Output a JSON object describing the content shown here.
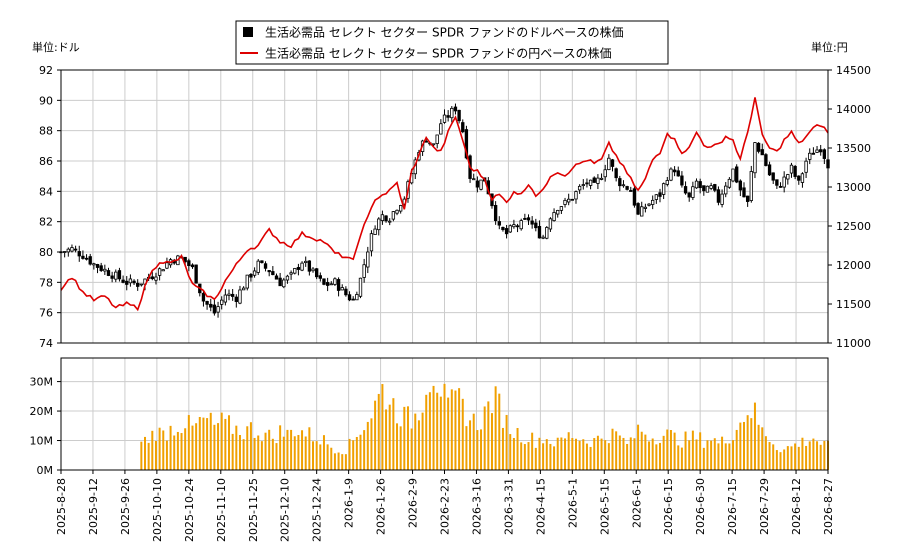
{
  "chart_data": {
    "type": "candlestick+line+bar",
    "legend": {
      "placement": "top-center",
      "items": [
        {
          "name": "生活必需品 セレクト セクター SPDR ファンドのドルベースの株価",
          "color": "#000000",
          "marker": "square"
        },
        {
          "name": "生活必需品 セレクト セクター SPDR ファンドの円ベースの株価",
          "color": "#dd0000",
          "marker": "line"
        }
      ]
    },
    "units": {
      "left": "単位:ドル",
      "right": "単位:円"
    },
    "price_axis_left": {
      "range": [
        74,
        92
      ],
      "ticks": [
        "74",
        "76",
        "78",
        "80",
        "82",
        "84",
        "86",
        "88",
        "90",
        "92"
      ]
    },
    "price_axis_right": {
      "range": [
        11000,
        14500
      ],
      "ticks": [
        "11000",
        "11500",
        "12000",
        "12500",
        "13000",
        "13500",
        "14000",
        "14500"
      ]
    },
    "volume_axis": {
      "range": [
        0,
        38000000
      ],
      "ticks": [
        "0M",
        "10M",
        "20M",
        "30M"
      ]
    },
    "x_ticks": [
      "2025-8-28",
      "2025-9-12",
      "2025-9-26",
      "2025-10-10",
      "2025-10-24",
      "2025-11-10",
      "2025-11-25",
      "2025-12-10",
      "2025-12-24",
      "2026-1-9",
      "2026-1-26",
      "2026-2-9",
      "2026-2-23",
      "2026-3-16",
      "2026-3-31",
      "2026-4-15",
      "2026-5-1",
      "2026-5-15",
      "2026-6-1",
      "2026-6-15",
      "2026-6-30",
      "2026-7-15",
      "2026-7-29",
      "2026-8-12",
      "2026-8-27"
    ],
    "grid": true,
    "usd_close_anchors": [
      [
        0,
        80.0
      ],
      [
        3,
        80.2
      ],
      [
        6,
        79.8
      ],
      [
        9,
        79.2
      ],
      [
        12,
        78.8
      ],
      [
        15,
        78.4
      ],
      [
        18,
        78.0
      ],
      [
        21,
        77.9
      ],
      [
        24,
        78.3
      ],
      [
        27,
        78.8
      ],
      [
        30,
        79.5
      ],
      [
        33,
        79.6
      ],
      [
        36,
        78.9
      ],
      [
        39,
        76.8
      ],
      [
        42,
        76.0
      ],
      [
        45,
        77.2
      ],
      [
        48,
        77.0
      ],
      [
        51,
        78.2
      ],
      [
        54,
        79.2
      ],
      [
        57,
        78.8
      ],
      [
        60,
        78.0
      ],
      [
        63,
        78.4
      ],
      [
        66,
        79.4
      ],
      [
        69,
        78.6
      ],
      [
        72,
        77.8
      ],
      [
        75,
        78.0
      ],
      [
        78,
        77.2
      ],
      [
        80,
        76.8
      ],
      [
        82,
        78.2
      ],
      [
        84,
        80.2
      ],
      [
        86,
        81.8
      ],
      [
        88,
        82.4
      ],
      [
        90,
        82.3
      ],
      [
        92,
        83.0
      ],
      [
        94,
        83.6
      ],
      [
        96,
        85.2
      ],
      [
        98,
        86.8
      ],
      [
        100,
        87.5
      ],
      [
        102,
        87.0
      ],
      [
        104,
        88.5
      ],
      [
        106,
        89.0
      ],
      [
        108,
        89.5
      ],
      [
        110,
        88.0
      ],
      [
        112,
        85.0
      ],
      [
        114,
        84.5
      ],
      [
        116,
        84.8
      ],
      [
        118,
        83.2
      ],
      [
        120,
        81.5
      ],
      [
        122,
        81.2
      ],
      [
        124,
        81.7
      ],
      [
        126,
        81.8
      ],
      [
        128,
        82.2
      ],
      [
        130,
        81.4
      ],
      [
        132,
        81.0
      ],
      [
        134,
        82.4
      ],
      [
        136,
        83.0
      ],
      [
        138,
        83.2
      ],
      [
        140,
        83.6
      ],
      [
        142,
        84.2
      ],
      [
        144,
        84.6
      ],
      [
        146,
        84.3
      ],
      [
        148,
        85.1
      ],
      [
        150,
        86.2
      ],
      [
        152,
        84.8
      ],
      [
        154,
        84.4
      ],
      [
        156,
        84.1
      ],
      [
        158,
        82.4
      ],
      [
        160,
        83.0
      ],
      [
        162,
        83.4
      ],
      [
        164,
        83.8
      ],
      [
        166,
        85.0
      ],
      [
        168,
        85.5
      ],
      [
        170,
        84.2
      ],
      [
        172,
        83.5
      ],
      [
        174,
        84.6
      ],
      [
        176,
        83.9
      ],
      [
        178,
        84.2
      ],
      [
        180,
        83.4
      ],
      [
        182,
        84.5
      ],
      [
        184,
        85.4
      ],
      [
        186,
        84.1
      ],
      [
        188,
        83.2
      ],
      [
        190,
        87.2
      ],
      [
        192,
        86.4
      ],
      [
        194,
        85.1
      ],
      [
        196,
        84.2
      ],
      [
        198,
        84.8
      ],
      [
        200,
        85.5
      ],
      [
        202,
        84.5
      ],
      [
        204,
        86.0
      ],
      [
        206,
        86.6
      ],
      [
        208,
        86.9
      ],
      [
        210,
        85.8
      ]
    ],
    "jpy_close_anchors": [
      [
        0,
        11700
      ],
      [
        3,
        11850
      ],
      [
        6,
        11650
      ],
      [
        9,
        11550
      ],
      [
        12,
        11600
      ],
      [
        15,
        11450
      ],
      [
        18,
        11500
      ],
      [
        21,
        11450
      ],
      [
        24,
        11850
      ],
      [
        27,
        12050
      ],
      [
        30,
        12020
      ],
      [
        33,
        12100
      ],
      [
        36,
        11750
      ],
      [
        39,
        11650
      ],
      [
        42,
        11550
      ],
      [
        45,
        11800
      ],
      [
        48,
        12000
      ],
      [
        51,
        12200
      ],
      [
        54,
        12250
      ],
      [
        57,
        12450
      ],
      [
        60,
        12300
      ],
      [
        63,
        12250
      ],
      [
        66,
        12400
      ],
      [
        69,
        12350
      ],
      [
        72,
        12300
      ],
      [
        75,
        12150
      ],
      [
        78,
        12100
      ],
      [
        80,
        12050
      ],
      [
        82,
        12400
      ],
      [
        84,
        12600
      ],
      [
        86,
        12850
      ],
      [
        88,
        12900
      ],
      [
        90,
        12950
      ],
      [
        92,
        13050
      ],
      [
        94,
        12700
      ],
      [
        96,
        13200
      ],
      [
        98,
        13400
      ],
      [
        100,
        13650
      ],
      [
        102,
        13500
      ],
      [
        104,
        13450
      ],
      [
        106,
        13700
      ],
      [
        108,
        13900
      ],
      [
        110,
        13600
      ],
      [
        112,
        13250
      ],
      [
        114,
        13200
      ],
      [
        116,
        13100
      ],
      [
        118,
        12850
      ],
      [
        120,
        12900
      ],
      [
        122,
        12800
      ],
      [
        124,
        12950
      ],
      [
        126,
        12900
      ],
      [
        128,
        13050
      ],
      [
        130,
        12900
      ],
      [
        132,
        12950
      ],
      [
        134,
        13150
      ],
      [
        136,
        13200
      ],
      [
        138,
        13150
      ],
      [
        140,
        13250
      ],
      [
        142,
        13300
      ],
      [
        144,
        13350
      ],
      [
        146,
        13300
      ],
      [
        148,
        13350
      ],
      [
        150,
        13550
      ],
      [
        152,
        13400
      ],
      [
        154,
        13250
      ],
      [
        156,
        13100
      ],
      [
        158,
        12950
      ],
      [
        160,
        13100
      ],
      [
        162,
        13350
      ],
      [
        164,
        13450
      ],
      [
        166,
        13700
      ],
      [
        168,
        13600
      ],
      [
        170,
        13450
      ],
      [
        172,
        13500
      ],
      [
        174,
        13700
      ],
      [
        176,
        13550
      ],
      [
        178,
        13500
      ],
      [
        180,
        13550
      ],
      [
        182,
        13650
      ],
      [
        184,
        13600
      ],
      [
        186,
        13350
      ],
      [
        188,
        13700
      ],
      [
        190,
        14150
      ],
      [
        192,
        13650
      ],
      [
        194,
        13500
      ],
      [
        196,
        13450
      ],
      [
        198,
        13600
      ],
      [
        200,
        13700
      ],
      [
        202,
        13550
      ],
      [
        204,
        13650
      ],
      [
        206,
        13750
      ],
      [
        208,
        13800
      ],
      [
        210,
        13700
      ]
    ],
    "volume_anchors_millions": [
      [
        0,
        0
      ],
      [
        21,
        0
      ],
      [
        22,
        9
      ],
      [
        24,
        11
      ],
      [
        26,
        13
      ],
      [
        28,
        12
      ],
      [
        30,
        14
      ],
      [
        32,
        15
      ],
      [
        34,
        16
      ],
      [
        36,
        14
      ],
      [
        38,
        16
      ],
      [
        40,
        17
      ],
      [
        42,
        15
      ],
      [
        44,
        16
      ],
      [
        46,
        15
      ],
      [
        48,
        14
      ],
      [
        50,
        13
      ],
      [
        52,
        14
      ],
      [
        54,
        13
      ],
      [
        56,
        12
      ],
      [
        58,
        11
      ],
      [
        60,
        13
      ],
      [
        62,
        12
      ],
      [
        64,
        14
      ],
      [
        66,
        13
      ],
      [
        68,
        12
      ],
      [
        70,
        11
      ],
      [
        72,
        10
      ],
      [
        74,
        8
      ],
      [
        76,
        7
      ],
      [
        78,
        7
      ],
      [
        80,
        10
      ],
      [
        82,
        14
      ],
      [
        84,
        17
      ],
      [
        86,
        22
      ],
      [
        88,
        27
      ],
      [
        90,
        24
      ],
      [
        92,
        20
      ],
      [
        94,
        18
      ],
      [
        96,
        17
      ],
      [
        98,
        20
      ],
      [
        100,
        30
      ],
      [
        102,
        34
      ],
      [
        104,
        28
      ],
      [
        106,
        20
      ],
      [
        108,
        24
      ],
      [
        110,
        22
      ],
      [
        112,
        17
      ],
      [
        114,
        16
      ],
      [
        116,
        19
      ],
      [
        118,
        24
      ],
      [
        120,
        22
      ],
      [
        122,
        16
      ],
      [
        124,
        13
      ],
      [
        126,
        12
      ],
      [
        128,
        11
      ],
      [
        130,
        10
      ],
      [
        132,
        11
      ],
      [
        134,
        10
      ],
      [
        136,
        9
      ],
      [
        138,
        11
      ],
      [
        140,
        12
      ],
      [
        142,
        11
      ],
      [
        144,
        10
      ],
      [
        146,
        10
      ],
      [
        148,
        11
      ],
      [
        150,
        12
      ],
      [
        152,
        12
      ],
      [
        154,
        10
      ],
      [
        156,
        9
      ],
      [
        158,
        14
      ],
      [
        160,
        13
      ],
      [
        162,
        11
      ],
      [
        164,
        12
      ],
      [
        166,
        12
      ],
      [
        168,
        11
      ],
      [
        170,
        10
      ],
      [
        172,
        11
      ],
      [
        174,
        11
      ],
      [
        176,
        10
      ],
      [
        178,
        11
      ],
      [
        180,
        9
      ],
      [
        182,
        10
      ],
      [
        184,
        13
      ],
      [
        186,
        16
      ],
      [
        188,
        21
      ],
      [
        190,
        19
      ],
      [
        192,
        13
      ],
      [
        194,
        11
      ],
      [
        196,
        8
      ],
      [
        198,
        7
      ],
      [
        200,
        8
      ],
      [
        202,
        9
      ],
      [
        204,
        10
      ],
      [
        206,
        11
      ],
      [
        208,
        9
      ],
      [
        210,
        8
      ]
    ]
  }
}
